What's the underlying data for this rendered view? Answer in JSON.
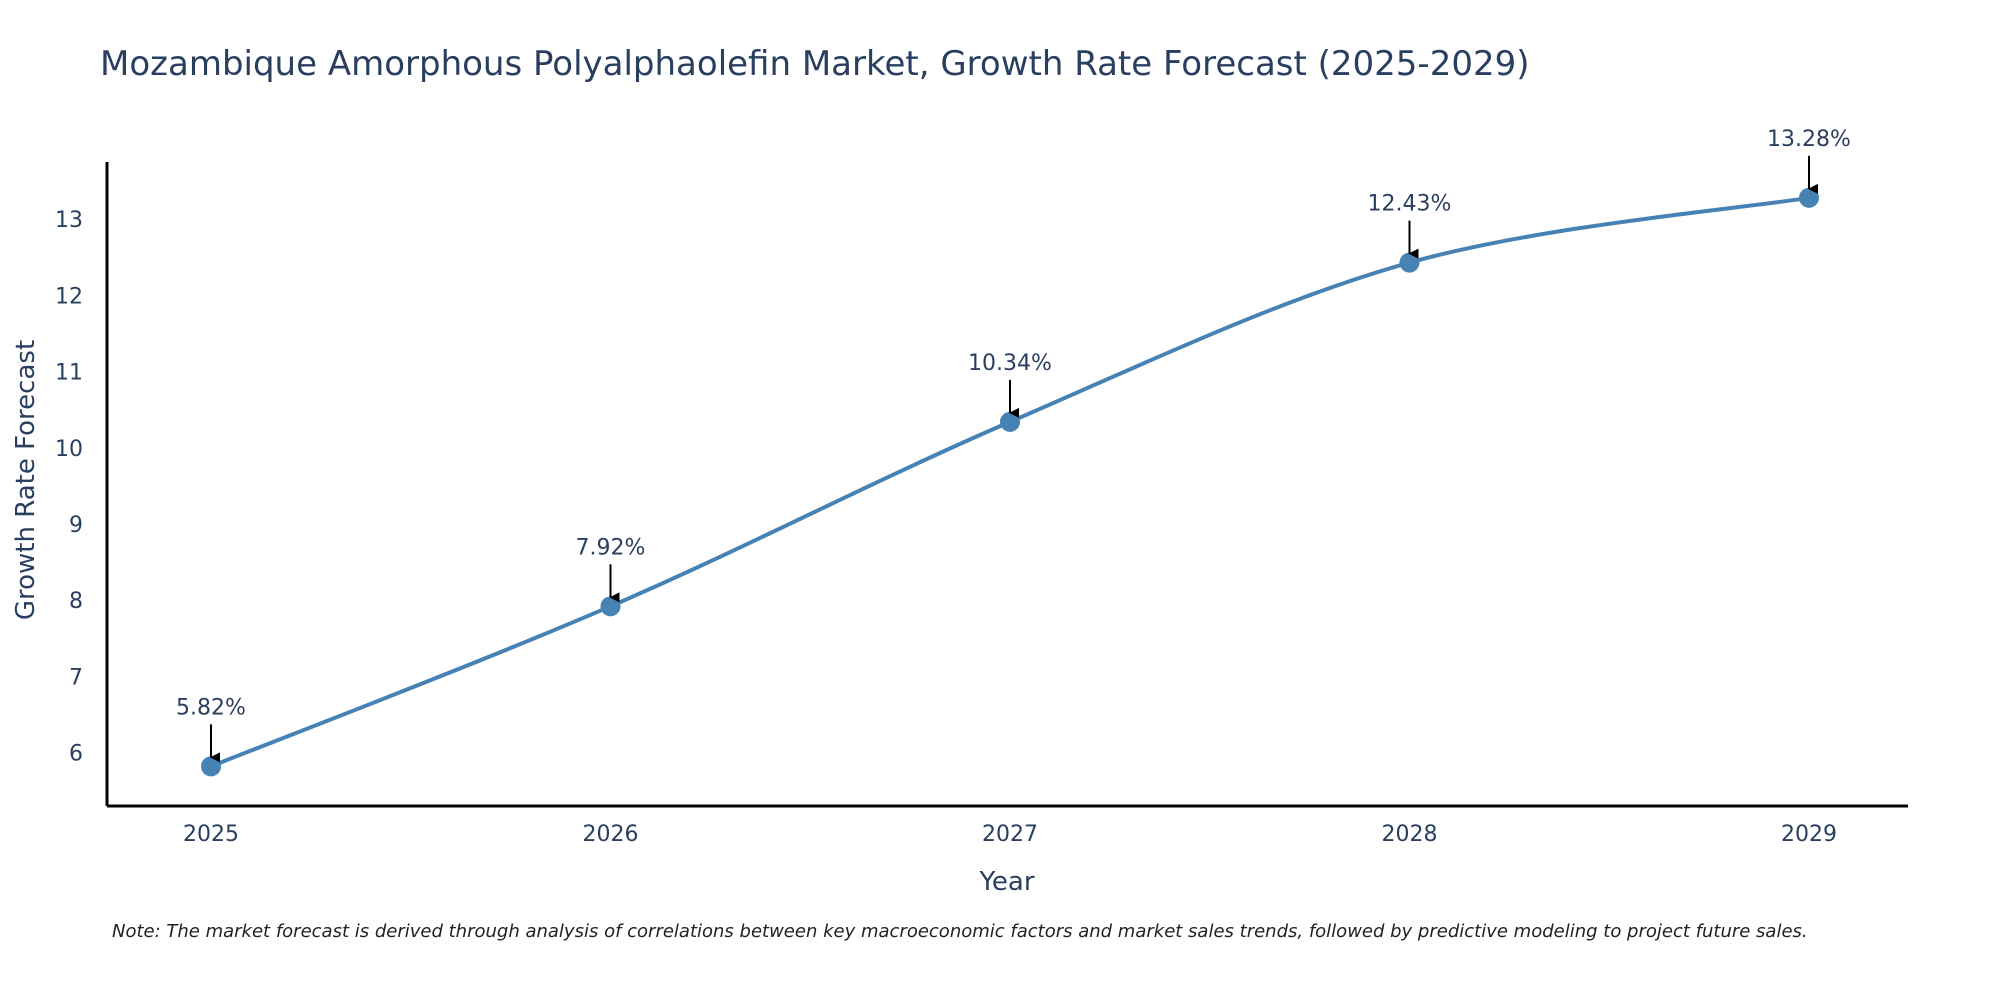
{
  "chart_data": {
    "type": "line",
    "title": "Mozambique Amorphous Polyalphaolefin Market, Growth Rate Forecast (2025-2029)",
    "xlabel": "Year",
    "ylabel": "Growth Rate Forecast",
    "categories": [
      "2025",
      "2026",
      "2027",
      "2028",
      "2029"
    ],
    "values": [
      5.82,
      7.92,
      10.34,
      12.43,
      13.28
    ],
    "data_labels": [
      "5.82%",
      "7.92%",
      "10.34%",
      "12.43%",
      "13.28%"
    ],
    "ylim": [
      5.3,
      13.75
    ],
    "yticks": [
      6,
      7,
      8,
      9,
      10,
      11,
      12,
      13
    ],
    "ytick_labels": [
      "6",
      "7",
      "8",
      "9",
      "10",
      "11",
      "12",
      "13"
    ],
    "grid": false,
    "line_color": "#4682b4",
    "marker_color": "#4682b4",
    "note": "Note: The market forecast is derived through analysis of correlations between key macroeconomic factors and market sales trends, followed by predictive modeling to project future sales."
  }
}
